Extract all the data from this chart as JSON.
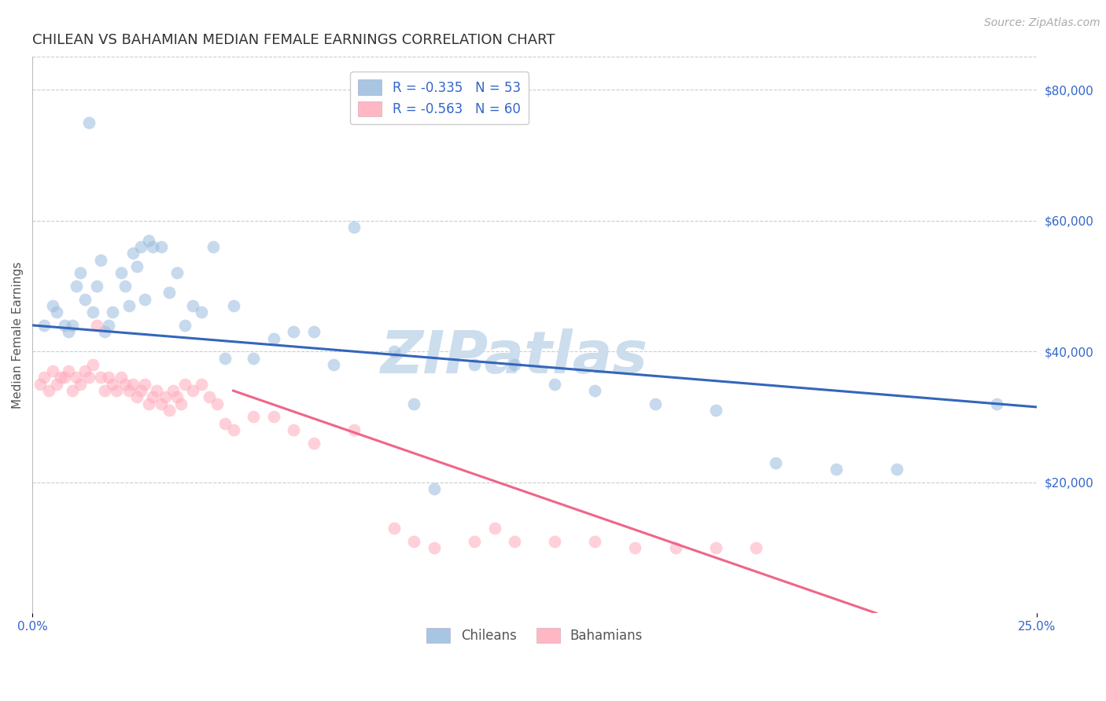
{
  "title": "CHILEAN VS BAHAMIAN MEDIAN FEMALE EARNINGS CORRELATION CHART",
  "source": "Source: ZipAtlas.com",
  "ylabel": "Median Female Earnings",
  "right_ytick_labels": [
    "$80,000",
    "$60,000",
    "$40,000",
    "$20,000"
  ],
  "right_ytick_values": [
    80000,
    60000,
    40000,
    20000
  ],
  "watermark": "ZIPatlas",
  "legend_line1": "R = -0.335   N = 53",
  "legend_line2": "R = -0.563   N = 60",
  "legend_group_labels": [
    "Chileans",
    "Bahamians"
  ],
  "blue_scatter_x": [
    0.003,
    0.005,
    0.006,
    0.008,
    0.009,
    0.01,
    0.011,
    0.012,
    0.013,
    0.014,
    0.015,
    0.016,
    0.017,
    0.018,
    0.019,
    0.02,
    0.022,
    0.023,
    0.024,
    0.025,
    0.026,
    0.027,
    0.028,
    0.029,
    0.03,
    0.032,
    0.034,
    0.036,
    0.038,
    0.04,
    0.042,
    0.045,
    0.048,
    0.05,
    0.055,
    0.06,
    0.065,
    0.07,
    0.075,
    0.08,
    0.09,
    0.095,
    0.1,
    0.11,
    0.12,
    0.13,
    0.14,
    0.155,
    0.17,
    0.185,
    0.2,
    0.215,
    0.24
  ],
  "blue_scatter_y": [
    44000,
    47000,
    46000,
    44000,
    43000,
    44000,
    50000,
    52000,
    48000,
    75000,
    46000,
    50000,
    54000,
    43000,
    44000,
    46000,
    52000,
    50000,
    47000,
    55000,
    53000,
    56000,
    48000,
    57000,
    56000,
    56000,
    49000,
    52000,
    44000,
    47000,
    46000,
    56000,
    39000,
    47000,
    39000,
    42000,
    43000,
    43000,
    38000,
    59000,
    40000,
    32000,
    19000,
    38000,
    38000,
    35000,
    34000,
    32000,
    31000,
    23000,
    22000,
    22000,
    32000
  ],
  "pink_scatter_x": [
    0.002,
    0.003,
    0.004,
    0.005,
    0.006,
    0.007,
    0.008,
    0.009,
    0.01,
    0.011,
    0.012,
    0.013,
    0.014,
    0.015,
    0.016,
    0.017,
    0.018,
    0.019,
    0.02,
    0.021,
    0.022,
    0.023,
    0.024,
    0.025,
    0.026,
    0.027,
    0.028,
    0.029,
    0.03,
    0.031,
    0.032,
    0.033,
    0.034,
    0.035,
    0.036,
    0.037,
    0.038,
    0.04,
    0.042,
    0.044,
    0.046,
    0.048,
    0.05,
    0.055,
    0.06,
    0.065,
    0.07,
    0.08,
    0.09,
    0.095,
    0.1,
    0.11,
    0.115,
    0.12,
    0.13,
    0.14,
    0.15,
    0.16,
    0.17,
    0.18
  ],
  "pink_scatter_y": [
    35000,
    36000,
    34000,
    37000,
    35000,
    36000,
    36000,
    37000,
    34000,
    36000,
    35000,
    37000,
    36000,
    38000,
    44000,
    36000,
    34000,
    36000,
    35000,
    34000,
    36000,
    35000,
    34000,
    35000,
    33000,
    34000,
    35000,
    32000,
    33000,
    34000,
    32000,
    33000,
    31000,
    34000,
    33000,
    32000,
    35000,
    34000,
    35000,
    33000,
    32000,
    29000,
    28000,
    30000,
    30000,
    28000,
    26000,
    28000,
    13000,
    11000,
    10000,
    11000,
    13000,
    11000,
    11000,
    11000,
    10000,
    10000,
    10000,
    10000
  ],
  "blue_line_x": [
    0.0,
    0.25
  ],
  "blue_line_y": [
    44000,
    31500
  ],
  "pink_line_x": [
    0.05,
    0.21
  ],
  "pink_line_y": [
    34000,
    0
  ],
  "xlim": [
    0.0,
    0.25
  ],
  "ylim": [
    0,
    85000
  ],
  "blue_color": "#99bbdd",
  "pink_color": "#ffaabb",
  "blue_line_color": "#3366bb",
  "pink_line_color": "#ee6688",
  "background_color": "#ffffff",
  "watermark_color": "#ccdded",
  "grid_color": "#cccccc",
  "title_fontsize": 13,
  "source_fontsize": 10,
  "axis_label_fontsize": 11,
  "tick_fontsize": 11,
  "legend_fontsize": 12,
  "scatter_size": 130,
  "scatter_alpha": 0.55,
  "line_width": 2.2
}
